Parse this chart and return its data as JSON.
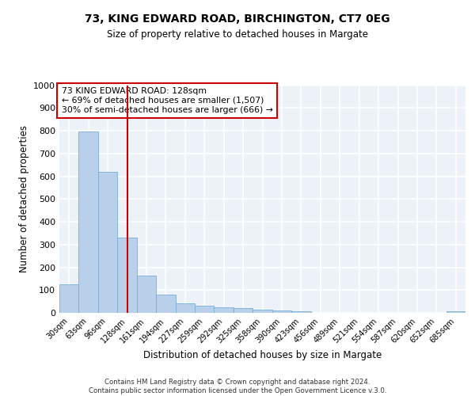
{
  "title": "73, KING EDWARD ROAD, BIRCHINGTON, CT7 0EG",
  "subtitle": "Size of property relative to detached houses in Margate",
  "xlabel": "Distribution of detached houses by size in Margate",
  "ylabel": "Number of detached properties",
  "bar_color": "#b8d0ea",
  "bar_edge_color": "#7aadd4",
  "background_color": "#edf2f9",
  "grid_color": "#ffffff",
  "vline_x": 3,
  "vline_color": "#cc0000",
  "annotation_box_color": "#cc0000",
  "categories": [
    "30sqm",
    "63sqm",
    "96sqm",
    "128sqm",
    "161sqm",
    "194sqm",
    "227sqm",
    "259sqm",
    "292sqm",
    "325sqm",
    "358sqm",
    "390sqm",
    "423sqm",
    "456sqm",
    "489sqm",
    "521sqm",
    "554sqm",
    "587sqm",
    "620sqm",
    "652sqm",
    "685sqm"
  ],
  "values": [
    125,
    795,
    620,
    330,
    163,
    80,
    42,
    30,
    25,
    20,
    15,
    10,
    8,
    0,
    0,
    0,
    0,
    0,
    0,
    0,
    8
  ],
  "ylim": [
    0,
    1000
  ],
  "yticks": [
    0,
    100,
    200,
    300,
    400,
    500,
    600,
    700,
    800,
    900,
    1000
  ],
  "annotation_lines": [
    "73 KING EDWARD ROAD: 128sqm",
    "← 69% of detached houses are smaller (1,507)",
    "30% of semi-detached houses are larger (666) →"
  ],
  "footer_lines": [
    "Contains HM Land Registry data © Crown copyright and database right 2024.",
    "Contains public sector information licensed under the Open Government Licence v.3.0."
  ]
}
